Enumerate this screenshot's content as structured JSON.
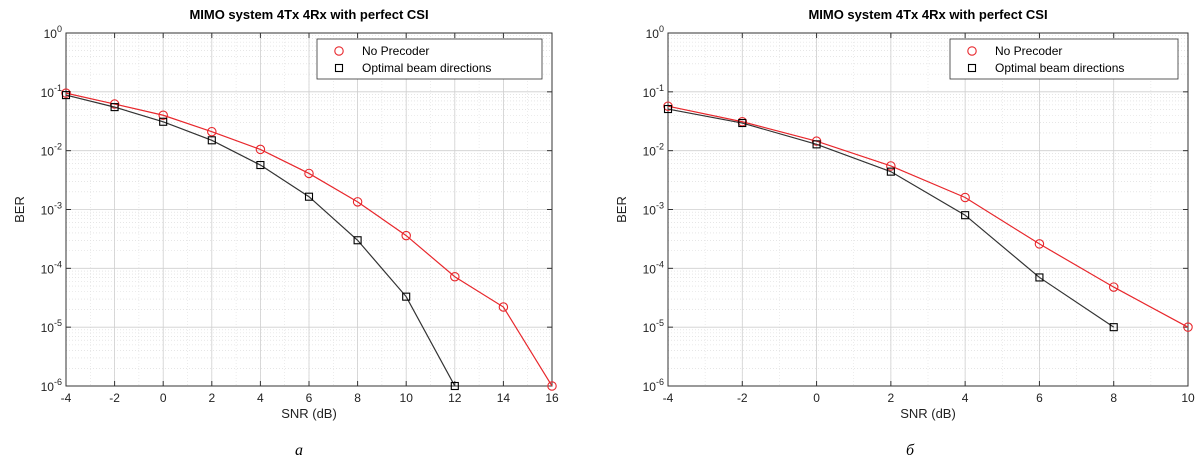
{
  "figures": [
    {
      "caption": "a",
      "chart_data": {
        "type": "line",
        "title": "MIMO system 4Tx 4Rx with perfect CSI",
        "xlabel": "SNR (dB)",
        "ylabel": "BER",
        "xlim": [
          -4,
          16
        ],
        "ylim": [
          1e-06,
          1
        ],
        "yscale": "log",
        "xticks": [
          -4,
          -2,
          0,
          2,
          4,
          6,
          8,
          10,
          12,
          14,
          16
        ],
        "yticks": [
          {
            "base": "10",
            "exp": "-6"
          },
          {
            "base": "10",
            "exp": "-5"
          },
          {
            "base": "10",
            "exp": "-4"
          },
          {
            "base": "10",
            "exp": "-3"
          },
          {
            "base": "10",
            "exp": "-2"
          },
          {
            "base": "10",
            "exp": "-1"
          },
          {
            "base": "10",
            "exp": "0"
          }
        ],
        "grid": true,
        "legend_position": "top-right",
        "series": [
          {
            "name": "No Precoder",
            "color": "#e8272c",
            "marker": "circle",
            "x": [
              -4,
              -2,
              0,
              2,
              4,
              6,
              8,
              10,
              12,
              14,
              16
            ],
            "y": [
              0.095,
              0.062,
              0.04,
              0.021,
              0.0105,
              0.0041,
              0.00135,
              0.00036,
              7.2e-05,
              2.2e-05,
              1e-06
            ]
          },
          {
            "name": "Optimal beam directions",
            "color": "#333333",
            "marker": "square",
            "x": [
              -4,
              -2,
              0,
              2,
              4,
              6,
              8,
              10,
              12
            ],
            "y": [
              0.088,
              0.055,
              0.031,
              0.015,
              0.0057,
              0.00165,
              0.0003,
              3.3e-05,
              1e-06
            ]
          }
        ]
      }
    },
    {
      "caption": "б",
      "chart_data": {
        "type": "line",
        "title": "MIMO system 4Tx 4Rx with perfect CSI",
        "xlabel": "SNR (dB)",
        "ylabel": "BER",
        "xlim": [
          -4,
          10
        ],
        "ylim": [
          1e-06,
          1
        ],
        "yscale": "log",
        "xticks": [
          -4,
          -2,
          0,
          2,
          4,
          6,
          8,
          10
        ],
        "yticks": [
          {
            "base": "10",
            "exp": "-6"
          },
          {
            "base": "10",
            "exp": "-5"
          },
          {
            "base": "10",
            "exp": "-4"
          },
          {
            "base": "10",
            "exp": "-3"
          },
          {
            "base": "10",
            "exp": "-2"
          },
          {
            "base": "10",
            "exp": "-1"
          },
          {
            "base": "10",
            "exp": "0"
          }
        ],
        "grid": true,
        "legend_position": "top-right",
        "series": [
          {
            "name": "No Precoder",
            "color": "#e8272c",
            "marker": "circle",
            "x": [
              -4,
              -2,
              0,
              2,
              4,
              6,
              8,
              10
            ],
            "y": [
              0.057,
              0.031,
              0.0145,
              0.0055,
              0.0016,
              0.00026,
              4.8e-05,
              1e-05
            ]
          },
          {
            "name": "Optimal beam directions",
            "color": "#333333",
            "marker": "square",
            "x": [
              -4,
              -2,
              0,
              2,
              4,
              6,
              8
            ],
            "y": [
              0.051,
              0.0295,
              0.0128,
              0.0044,
              0.0008,
              7e-05,
              1e-05
            ]
          }
        ]
      }
    }
  ]
}
